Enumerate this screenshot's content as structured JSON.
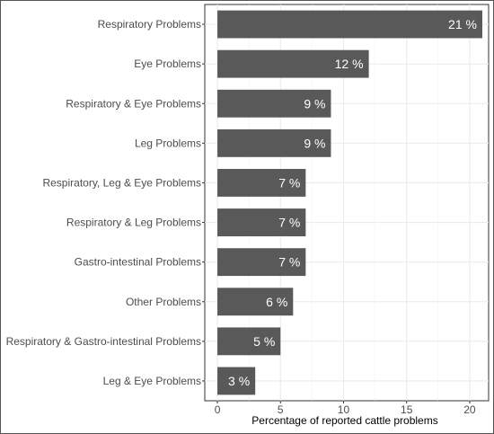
{
  "chart_data": {
    "type": "bar",
    "orientation": "horizontal",
    "categories": [
      "Respiratory Problems",
      "Eye Problems",
      "Respiratory & Eye Problems",
      "Leg Problems",
      "Respiratory, Leg & Eye Problems",
      "Respiratory & Leg Problems",
      "Gastro-intestinal Problems",
      "Other Problems",
      "Respiratory & Gastro-intestinal Problems",
      "Leg & Eye Problems"
    ],
    "values": [
      21,
      12,
      9,
      9,
      7,
      7,
      7,
      6,
      5,
      3
    ],
    "data_labels": [
      "21 %",
      "12 %",
      "9 %",
      "9 %",
      "7 %",
      "7 %",
      "7 %",
      "6 %",
      "5 %",
      "3 %"
    ],
    "xlabel": "Percentage of reported cattle problems",
    "ylabel": "",
    "xlim": [
      -1,
      21.5
    ],
    "xticks": [
      0,
      5,
      10,
      15,
      20
    ],
    "grid": true,
    "bar_color": "#595959"
  }
}
